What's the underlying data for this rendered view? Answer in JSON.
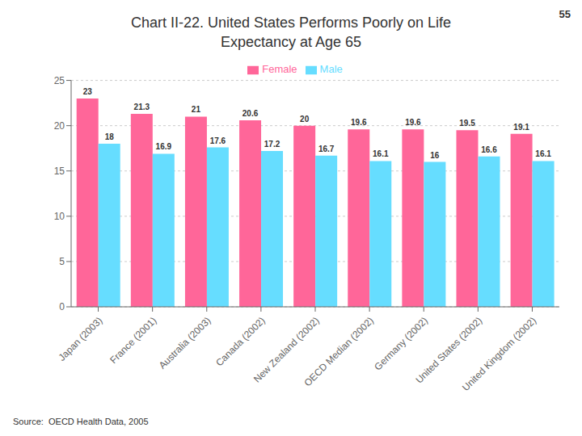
{
  "chart_data": {
    "type": "bar",
    "title": "Chart II-22. United States Performs Poorly on Life\nExpectancy at Age 65",
    "categories": [
      "Japan (2003)",
      "France (2001)",
      "Australia (2003)",
      "Canada (2002)",
      "New Zealand (2002)",
      "OECD Median (2002)",
      "Germany (2002)",
      "United States (2002)",
      "United Kingdom (2002)"
    ],
    "series": [
      {
        "name": "Female",
        "color": "#ff6699",
        "values": [
          23.0,
          21.3,
          21.0,
          20.6,
          20.0,
          19.6,
          19.6,
          19.5,
          19.1
        ]
      },
      {
        "name": "Male",
        "color": "#66ddff",
        "values": [
          18.0,
          16.9,
          17.6,
          17.2,
          16.7,
          16.1,
          16.0,
          16.6,
          16.1
        ]
      }
    ],
    "ylim": [
      0,
      25
    ],
    "yticks": [
      0,
      5,
      10,
      15,
      20,
      25
    ],
    "grid": true,
    "legend": "upper center",
    "data_labels": true,
    "annotations": [
      "55",
      "Source:  OECD Health Data, 2005"
    ]
  }
}
